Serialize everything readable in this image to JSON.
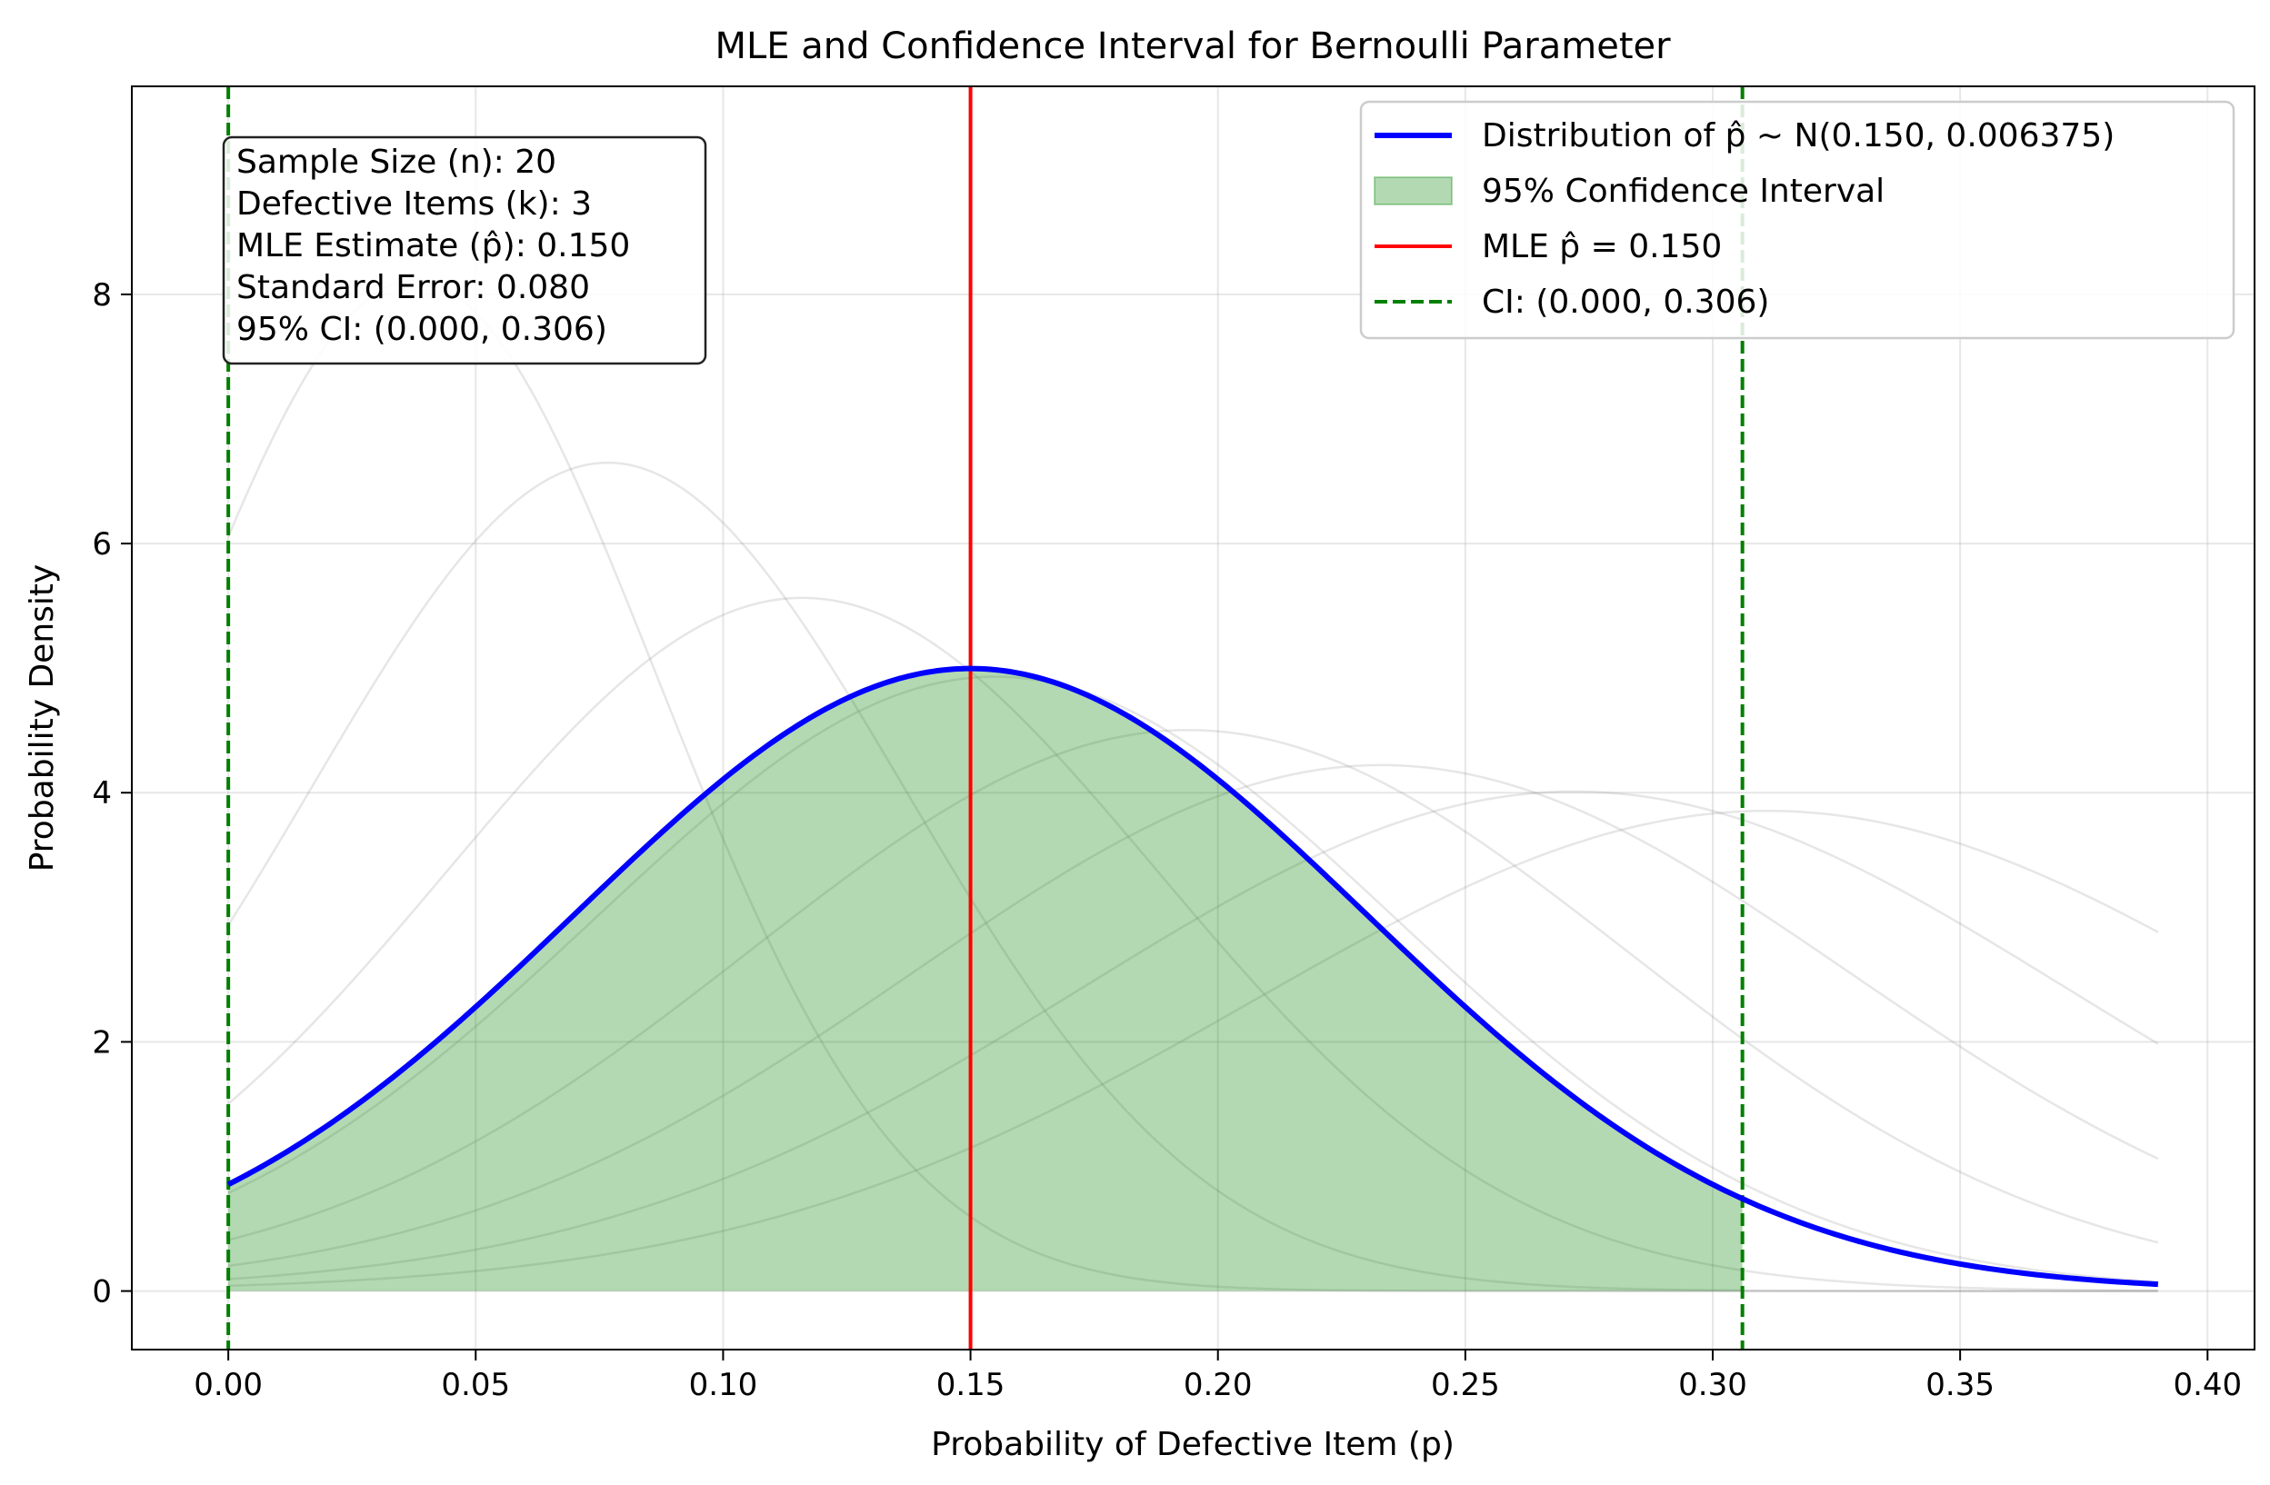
{
  "chart_data": {
    "type": "line",
    "title": "MLE and Confidence Interval for Bernoulli Parameter",
    "xlabel": "Probability of Defective Item (p)",
    "ylabel": "Probability Density",
    "xlim": [
      -0.0195,
      0.4095
    ],
    "ylim": [
      -0.47,
      9.67
    ],
    "xticks": [
      0.0,
      0.05,
      0.1,
      0.15,
      0.2,
      0.25,
      0.3,
      0.35,
      0.4
    ],
    "xtick_labels": [
      "0.00",
      "0.05",
      "0.10",
      "0.15",
      "0.20",
      "0.25",
      "0.30",
      "0.35",
      "0.40"
    ],
    "yticks": [
      0,
      2,
      4,
      6,
      8
    ],
    "ytick_labels": [
      "0",
      "2",
      "4",
      "6",
      "8"
    ],
    "grid": true,
    "legend_position": "top-right",
    "main_curve": {
      "label": "Distribution of p̂ ~ N(0.150, 0.006375)",
      "mean": 0.15,
      "variance": 0.006375,
      "x_range": [
        0.0,
        0.39
      ],
      "color": "#0000ff"
    },
    "confidence_interval": {
      "label": "95% Confidence Interval",
      "lower": 0.0,
      "upper": 0.306,
      "fill_color": "#008000",
      "fill_alpha": 0.3
    },
    "mle_line": {
      "label": "MLE p̂ = 0.150",
      "x": 0.15,
      "color": "#ff0000"
    },
    "ci_lines": {
      "label": "CI: (0.000, 0.306)",
      "x": [
        0.0,
        0.306
      ],
      "color": "#008000"
    },
    "background_curves": {
      "color": "#808080",
      "alpha": 0.2,
      "x_range": [
        0.0,
        0.39
      ],
      "series": [
        {
          "mean": 0.0376,
          "sd": 0.0492
        },
        {
          "mean": 0.0767,
          "sd": 0.06
        },
        {
          "mean": 0.116,
          "sd": 0.0717
        },
        {
          "mean": 0.155,
          "sd": 0.0809
        },
        {
          "mean": 0.194,
          "sd": 0.0886
        },
        {
          "mean": 0.233,
          "sd": 0.0945
        },
        {
          "mean": 0.272,
          "sd": 0.0995
        },
        {
          "mean": 0.311,
          "sd": 0.1035
        }
      ]
    },
    "stats_box": {
      "lines": [
        "Sample Size (n): 20",
        "Defective Items (k): 3",
        "MLE Estimate (p̂): 0.150",
        "Standard Error: 0.080",
        "95% CI: (0.000, 0.306)"
      ]
    }
  }
}
